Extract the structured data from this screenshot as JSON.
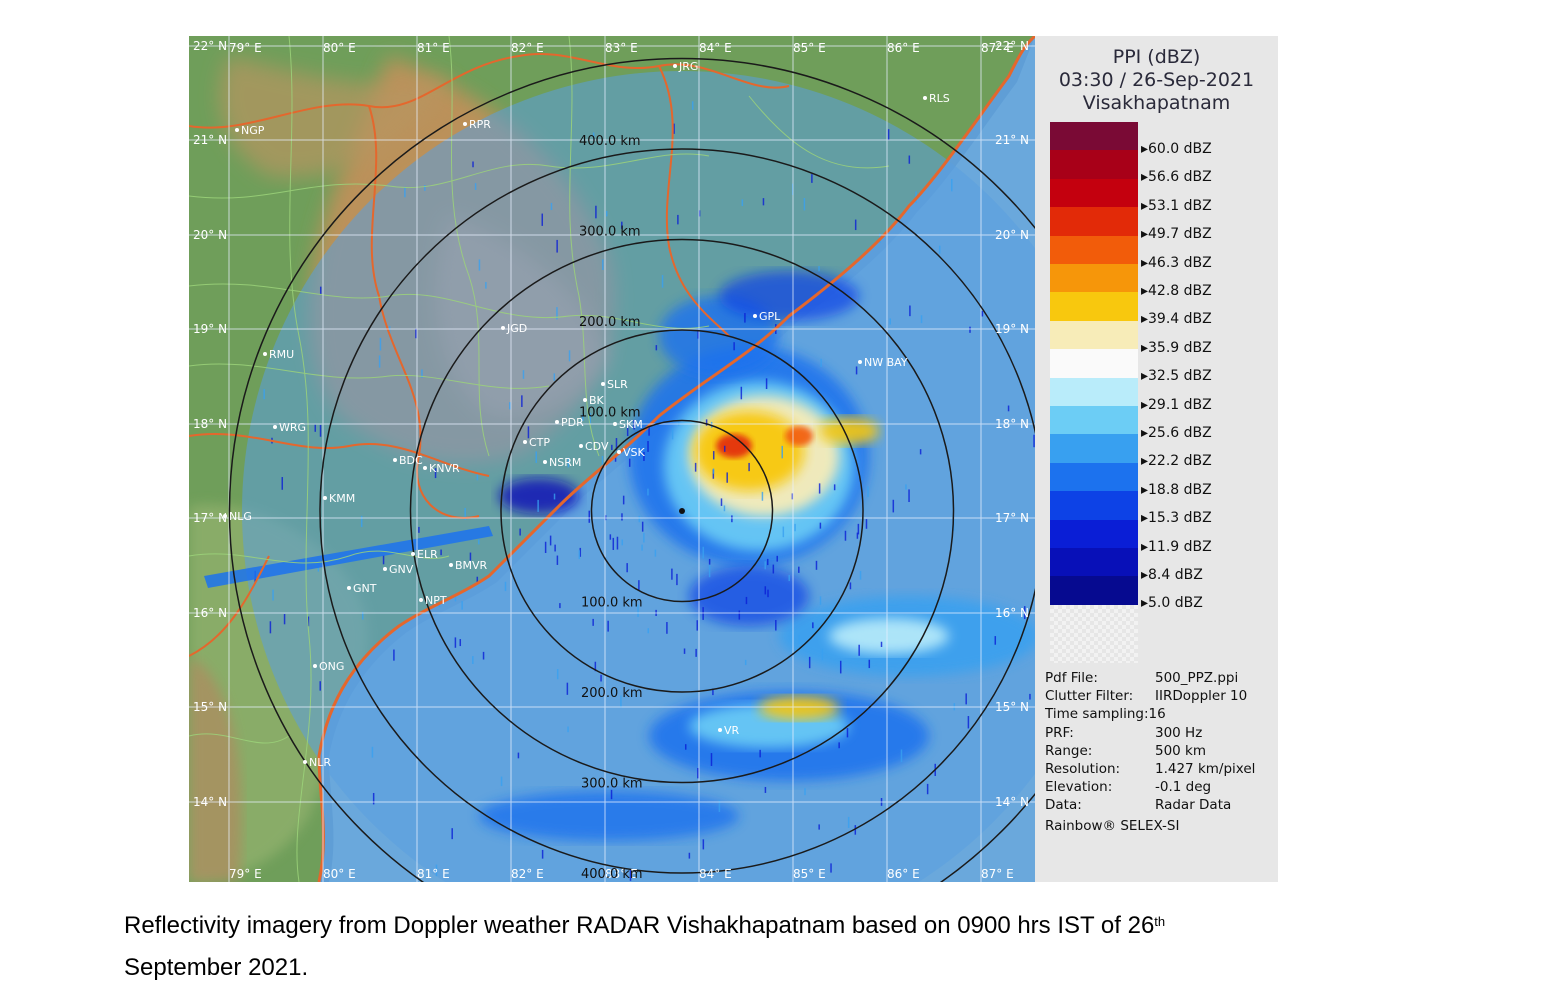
{
  "legend": {
    "title": "PPI (dBZ)",
    "datetime": "03:30 / 26-Sep-2021",
    "station": "Visakhapatnam",
    "scale": [
      {
        "label": "60.0 dBZ",
        "color": "#7a0a35"
      },
      {
        "label": "56.6 dBZ",
        "color": "#a80018"
      },
      {
        "label": "53.1 dBZ",
        "color": "#c4000e"
      },
      {
        "label": "49.7 dBZ",
        "color": "#e22a08"
      },
      {
        "label": "46.3 dBZ",
        "color": "#f25c0a"
      },
      {
        "label": "42.8 dBZ",
        "color": "#f6960a"
      },
      {
        "label": "39.4 dBZ",
        "color": "#f8c80e"
      },
      {
        "label": "35.9 dBZ",
        "color": "#f7ecb8"
      },
      {
        "label": "32.5 dBZ",
        "color": "#fafafa"
      },
      {
        "label": "29.1 dBZ",
        "color": "#b9ecfa"
      },
      {
        "label": "25.6 dBZ",
        "color": "#6ccdf5"
      },
      {
        "label": "22.2 dBZ",
        "color": "#38a0f0"
      },
      {
        "label": "18.8 dBZ",
        "color": "#1c72ee"
      },
      {
        "label": "15.3 dBZ",
        "color": "#0d42e6"
      },
      {
        "label": "11.9 dBZ",
        "color": "#0a1ed6"
      },
      {
        "label": "8.4 dBZ",
        "color": "#0810b8"
      },
      {
        "label": "5.0 dBZ",
        "color": "#060a90"
      }
    ],
    "info": [
      {
        "key": "Pdf File:",
        "value": "500_PPZ.ppi"
      },
      {
        "key": "Clutter Filter:",
        "value": "IIRDoppler 10"
      },
      {
        "key": "Time sampling:",
        "value": "16"
      },
      {
        "key": "PRF:",
        "value": "300 Hz"
      },
      {
        "key": "Range:",
        "value": "500 km"
      },
      {
        "key": "Resolution:",
        "value": "1.427 km/pixel"
      },
      {
        "key": "Elevation:",
        "value": "-0.1 deg"
      },
      {
        "key": "Data:",
        "value": "Radar Data"
      }
    ],
    "credit": "Rainbow® SELEX-SI"
  },
  "map": {
    "lat_labels": [
      "22° N",
      "21° N",
      "20° N",
      "19° N",
      "18° N",
      "17° N",
      "16° N",
      "15° N",
      "14° N"
    ],
    "lon_labels_top": [
      "79° E",
      "80° E",
      "81° E",
      "82° E",
      "83° E",
      "84° E",
      "85° E",
      "86° E",
      "87° E"
    ],
    "lon_labels_bottom": [
      "79° E",
      "80° E",
      "81° E",
      "82° E",
      "83° E",
      "84° E",
      "85° E",
      "86° E",
      "87° E"
    ],
    "range_labels_north": [
      "100.0 km",
      "200.0 km",
      "300.0 km",
      "400.0 km"
    ],
    "range_labels_south": [
      "100.0 km",
      "200.0 km",
      "300.0 km",
      "400.0 km"
    ],
    "places": [
      "NGP",
      "RPR",
      "JRG",
      "RLS",
      "RMU",
      "JGD",
      "WRG",
      "BDC",
      "KMM",
      "NLG",
      "KNVR",
      "ELR",
      "GNV",
      "BMVR",
      "GNT",
      "NPT",
      "ONG",
      "NLR",
      "SLR",
      "BK",
      "PDR",
      "CTP",
      "CDV",
      "NSRM",
      "VSK",
      "SKM",
      "GPL",
      "NW BAY",
      "VR"
    ]
  },
  "caption": {
    "text_before": "Reflectivity imagery from Doppler weather RADAR Vishakhapatnam based on 0900 hrs IST of 26",
    "superscript": "th",
    "text_after": "September 2021."
  }
}
